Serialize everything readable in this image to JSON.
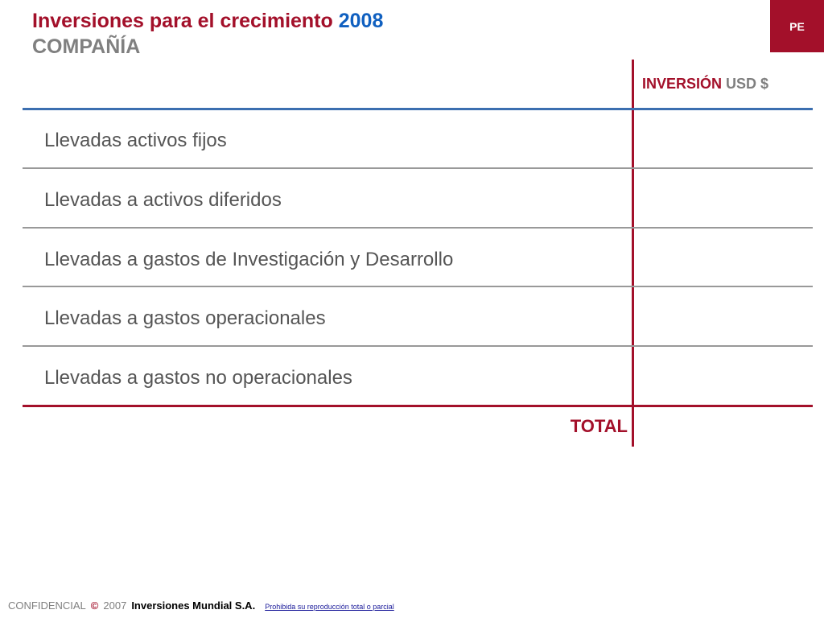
{
  "header": {
    "title": "Inversiones para el crecimiento",
    "year": "2008",
    "subtitle": "COMPAÑÍA",
    "badge": "PE"
  },
  "table": {
    "column_header_main": "INVERSIÓN",
    "column_header_unit": "USD $",
    "rows": [
      {
        "label": "Llevadas activos fijos"
      },
      {
        "label": "Llevadas a activos diferidos"
      },
      {
        "label": "Llevadas a gastos de Investigación y Desarrollo"
      },
      {
        "label": "Llevadas a gastos operacionales"
      },
      {
        "label": "Llevadas a gastos no operacionales"
      }
    ],
    "total_label": "TOTAL"
  },
  "footer": {
    "confidential": "CONFIDENCIAL",
    "copyright_symbol": "©",
    "year": "2007",
    "company": "Inversiones Mundial S.A.",
    "notice": "Prohibida su reproducción total o parcial"
  },
  "colors": {
    "brand_red": "#a3102a",
    "accent_blue": "#1060c0",
    "rule_blue": "#3c6fb0",
    "text_gray": "#808080"
  }
}
